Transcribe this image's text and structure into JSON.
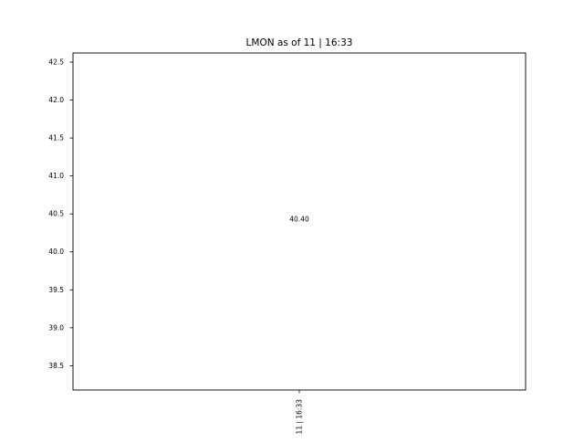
{
  "chart_data": {
    "type": "scatter",
    "title": "LMON as of 11 | 16:33",
    "xlabel": "",
    "ylabel": "",
    "categories": [
      "11 | 16:33"
    ],
    "values": [
      40.4
    ],
    "data_labels": [
      "40.40"
    ],
    "ylim": [
      38.18,
      42.62
    ],
    "yticks": [
      38.5,
      39.0,
      39.5,
      40.0,
      40.5,
      41.0,
      41.5,
      42.0,
      42.5
    ],
    "ytick_labels": [
      "38.5",
      "39.0",
      "39.5",
      "40.0",
      "40.5",
      "41.0",
      "41.5",
      "42.0",
      "42.5"
    ],
    "grid": false,
    "legend": "none"
  }
}
